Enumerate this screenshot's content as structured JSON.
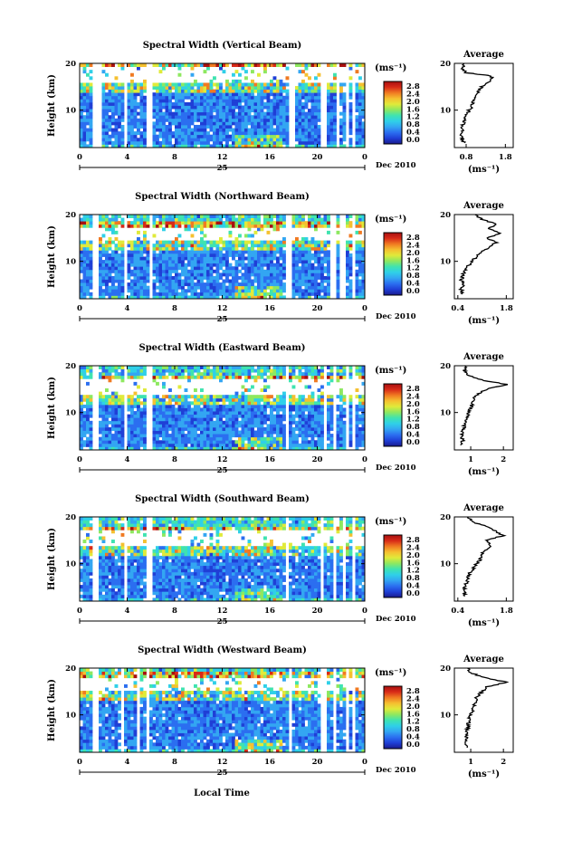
{
  "colors": {
    "colormap": [
      "#1a1a8c",
      "#1f3fd6",
      "#2b6ef0",
      "#33a6f2",
      "#2fd0e8",
      "#3fe3b0",
      "#8ee860",
      "#e0ea3a",
      "#f5c030",
      "#f07a22",
      "#d82a18",
      "#a81010"
    ],
    "avg_line": "#000000"
  },
  "xlabel": "Local Time",
  "date_label": "Dec 2010",
  "day_label": "25",
  "colorbar": {
    "unit": "(ms⁻¹)",
    "ticks": [
      "2.8",
      "2.4",
      "2.0",
      "1.6",
      "1.2",
      "0.8",
      "0.4",
      "0.0"
    ]
  },
  "chart_data": [
    {
      "type": "heatmap",
      "title": "Spectral Width (Vertical Beam)",
      "ylabel": "Height (km)",
      "x_ticks": [
        "0",
        "4",
        "8",
        "12",
        "16",
        "20",
        "0"
      ],
      "y_ticks": [
        "20",
        "10"
      ],
      "xlim": [
        0,
        24
      ],
      "ylim": [
        2,
        20
      ],
      "value_range": [
        0,
        3.0
      ],
      "gaps_hours": [
        [
          1.1,
          1.9
        ],
        [
          3.8,
          4.1
        ],
        [
          5.6,
          6.0
        ],
        [
          17.5,
          18.2
        ],
        [
          20.4,
          20.7
        ],
        [
          21.6,
          21.8
        ],
        [
          22.3,
          22.6
        ],
        [
          23.0,
          23.2
        ]
      ],
      "blank_layer_km": [
        16,
        19
      ],
      "avg": {
        "title": "Average",
        "xlabel": "(ms⁻¹)",
        "x_ticks": [
          "0.8",
          "1.8"
        ],
        "x_tick_vals": [
          0.8,
          1.8
        ],
        "xlim": [
          0.5,
          2.0
        ],
        "y_ticks": [
          "20",
          "10"
        ],
        "profile": [
          [
            3,
            0.75
          ],
          [
            4,
            0.7
          ],
          [
            5,
            0.68
          ],
          [
            6,
            0.7
          ],
          [
            7,
            0.72
          ],
          [
            8,
            0.75
          ],
          [
            9,
            0.82
          ],
          [
            10,
            0.88
          ],
          [
            11,
            0.95
          ],
          [
            12,
            1.0
          ],
          [
            13,
            1.05
          ],
          [
            14,
            1.1
          ],
          [
            15,
            1.2
          ],
          [
            16,
            1.4
          ],
          [
            17,
            1.5
          ],
          [
            17.5,
            1.3
          ],
          [
            18,
            0.8
          ],
          [
            19,
            0.7
          ],
          [
            20,
            0.75
          ]
        ]
      }
    },
    {
      "type": "heatmap",
      "title": "Spectral Width (Northward Beam)",
      "ylabel": "Height (km)",
      "x_ticks": [
        "0",
        "4",
        "8",
        "12",
        "16",
        "20",
        "0"
      ],
      "y_ticks": [
        "20",
        "10"
      ],
      "xlim": [
        0,
        24
      ],
      "ylim": [
        2,
        20
      ],
      "value_range": [
        0,
        3.0
      ],
      "gaps_hours": [
        [
          1.0,
          1.5
        ],
        [
          3.7,
          4.0
        ],
        [
          5.8,
          6.1
        ],
        [
          17.4,
          17.8
        ],
        [
          21.0,
          21.5
        ],
        [
          22.0,
          22.3
        ],
        [
          22.8,
          23.1
        ]
      ],
      "blank_layer_km": [
        14.5,
        17.5
      ],
      "avg": {
        "title": "Average",
        "xlabel": "(ms⁻¹)",
        "x_ticks": [
          "0.4",
          "1.8"
        ],
        "x_tick_vals": [
          0.4,
          1.8
        ],
        "xlim": [
          0.3,
          2.0
        ],
        "y_ticks": [
          "20",
          "10"
        ],
        "profile": [
          [
            3,
            0.55
          ],
          [
            4,
            0.5
          ],
          [
            5,
            0.55
          ],
          [
            6,
            0.5
          ],
          [
            7,
            0.55
          ],
          [
            8,
            0.6
          ],
          [
            9,
            0.7
          ],
          [
            10,
            0.8
          ],
          [
            11,
            0.95
          ],
          [
            12,
            1.1
          ],
          [
            13,
            1.3
          ],
          [
            14,
            1.5
          ],
          [
            15,
            1.25
          ],
          [
            16,
            1.6
          ],
          [
            17,
            1.3
          ],
          [
            18,
            1.5
          ],
          [
            19,
            1.1
          ],
          [
            20,
            0.9
          ]
        ]
      }
    },
    {
      "type": "heatmap",
      "title": "Spectral Width (Eastward Beam)",
      "ylabel": "Height (km)",
      "x_ticks": [
        "0",
        "4",
        "8",
        "12",
        "16",
        "20",
        "0"
      ],
      "y_ticks": [
        "20",
        "10"
      ],
      "xlim": [
        0,
        24
      ],
      "ylim": [
        2,
        20
      ],
      "value_range": [
        0,
        3.0
      ],
      "gaps_hours": [
        [
          1.2,
          1.6
        ],
        [
          3.6,
          3.9
        ],
        [
          5.7,
          6.0
        ],
        [
          17.3,
          17.6
        ],
        [
          20.5,
          20.8
        ],
        [
          21.4,
          21.7
        ],
        [
          22.3,
          22.6
        ],
        [
          23.0,
          23.3
        ]
      ],
      "blank_layer_km": [
        14,
        17
      ],
      "avg": {
        "title": "Average",
        "xlabel": "(ms⁻¹)",
        "x_ticks": [
          "1",
          "2"
        ],
        "x_tick_vals": [
          1,
          2
        ],
        "xlim": [
          0.5,
          2.3
        ],
        "y_ticks": [
          "20",
          "10"
        ],
        "profile": [
          [
            3,
            0.7
          ],
          [
            4,
            0.75
          ],
          [
            5,
            0.72
          ],
          [
            6,
            0.75
          ],
          [
            7,
            0.8
          ],
          [
            8,
            0.85
          ],
          [
            9,
            0.9
          ],
          [
            10,
            0.95
          ],
          [
            11,
            1.0
          ],
          [
            12,
            1.05
          ],
          [
            13,
            1.1
          ],
          [
            14,
            1.25
          ],
          [
            15,
            1.5
          ],
          [
            16,
            2.1
          ],
          [
            17,
            1.3
          ],
          [
            18,
            0.9
          ],
          [
            19,
            0.8
          ],
          [
            20,
            0.85
          ]
        ]
      }
    },
    {
      "type": "heatmap",
      "title": "Spectral Width (Southward Beam)",
      "ylabel": "Height (km)",
      "x_ticks": [
        "0",
        "4",
        "8",
        "12",
        "16",
        "20",
        "0"
      ],
      "y_ticks": [
        "20",
        "10"
      ],
      "xlim": [
        0,
        24
      ],
      "ylim": [
        2,
        20
      ],
      "value_range": [
        0,
        3.0
      ],
      "gaps_hours": [
        [
          1.1,
          1.6
        ],
        [
          3.6,
          3.9
        ],
        [
          4.7,
          4.9
        ],
        [
          5.7,
          6.0
        ],
        [
          17.4,
          17.7
        ],
        [
          20.3,
          20.6
        ],
        [
          21.3,
          21.6
        ],
        [
          22.2,
          22.5
        ],
        [
          22.9,
          23.2
        ]
      ],
      "blank_layer_km": [
        13.5,
        17
      ],
      "avg": {
        "title": "Average",
        "xlabel": "(ms⁻¹)",
        "x_ticks": [
          "0.4",
          "1.8"
        ],
        "x_tick_vals": [
          0.4,
          1.8
        ],
        "xlim": [
          0.3,
          2.0
        ],
        "y_ticks": [
          "20",
          "10"
        ],
        "profile": [
          [
            3,
            0.6
          ],
          [
            4,
            0.62
          ],
          [
            5,
            0.6
          ],
          [
            6,
            0.65
          ],
          [
            7,
            0.7
          ],
          [
            8,
            0.75
          ],
          [
            9,
            0.85
          ],
          [
            10,
            0.95
          ],
          [
            11,
            1.05
          ],
          [
            12,
            1.1
          ],
          [
            13,
            1.2
          ],
          [
            14,
            1.35
          ],
          [
            15,
            1.25
          ],
          [
            16,
            1.7
          ],
          [
            17,
            1.5
          ],
          [
            18,
            1.2
          ],
          [
            19,
            0.8
          ],
          [
            20,
            0.7
          ]
        ]
      }
    },
    {
      "type": "heatmap",
      "title": "Spectral Width (Westward Beam)",
      "ylabel": "Height (km)",
      "x_ticks": [
        "0",
        "4",
        "8",
        "12",
        "16",
        "20",
        "0"
      ],
      "y_ticks": [
        "20",
        "10"
      ],
      "xlim": [
        0,
        24
      ],
      "ylim": [
        2,
        20
      ],
      "value_range": [
        0,
        3.0
      ],
      "gaps_hours": [
        [
          1.1,
          1.7
        ],
        [
          3.4,
          3.7
        ],
        [
          4.7,
          5.0
        ],
        [
          5.6,
          5.9
        ],
        [
          17.5,
          17.8
        ],
        [
          20.4,
          20.7
        ],
        [
          21.4,
          21.7
        ],
        [
          22.3,
          22.6
        ],
        [
          23.0,
          23.3
        ]
      ],
      "blank_layer_km": [
        15,
        18
      ],
      "avg": {
        "title": "Average",
        "xlabel": "(ms⁻¹)",
        "x_ticks": [
          "1",
          "2"
        ],
        "x_tick_vals": [
          1,
          2
        ],
        "xlim": [
          0.5,
          2.3
        ],
        "y_ticks": [
          "20",
          "10"
        ],
        "profile": [
          [
            3,
            0.9
          ],
          [
            4,
            0.85
          ],
          [
            5,
            0.88
          ],
          [
            6,
            0.85
          ],
          [
            7,
            0.9
          ],
          [
            8,
            0.92
          ],
          [
            9,
            0.95
          ],
          [
            10,
            1.0
          ],
          [
            11,
            1.05
          ],
          [
            12,
            1.1
          ],
          [
            13,
            1.15
          ],
          [
            14,
            1.2
          ],
          [
            15,
            1.35
          ],
          [
            16,
            1.5
          ],
          [
            17,
            2.1
          ],
          [
            18,
            1.4
          ],
          [
            19,
            1.0
          ],
          [
            20,
            0.9
          ]
        ]
      }
    }
  ]
}
